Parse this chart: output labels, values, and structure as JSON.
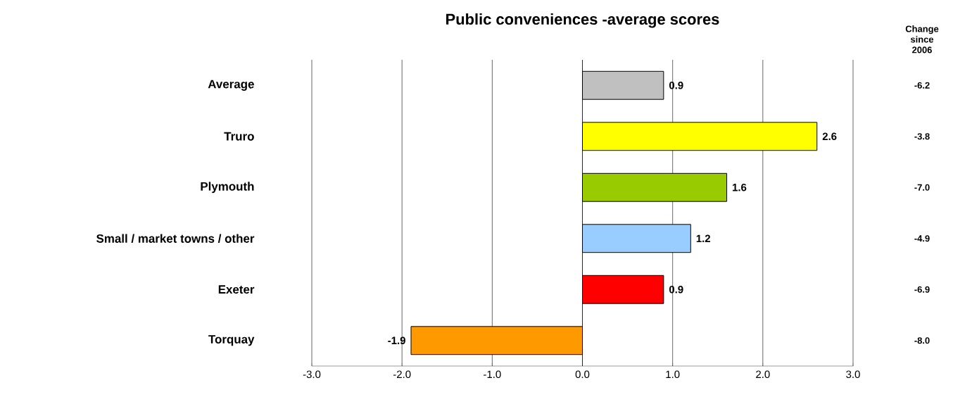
{
  "chart_data": {
    "type": "bar",
    "orientation": "horizontal",
    "title": "Public conveniences -average scores",
    "categories": [
      "Average",
      "Truro",
      "Plymouth",
      "Small / market towns / other",
      "Exeter",
      "Torquay"
    ],
    "values": [
      0.9,
      2.6,
      1.6,
      1.2,
      0.9,
      -1.9
    ],
    "value_labels": [
      "0.9",
      "2.6",
      "1.6",
      "1.2",
      "0.9",
      "-1.9"
    ],
    "colors": [
      "#c0c0c0",
      "#ffff00",
      "#99cc00",
      "#99ccff",
      "#ff0000",
      "#ff9900"
    ],
    "xlim": [
      -3,
      3
    ],
    "xticks": [
      {
        "value": -3,
        "label": "-3.0"
      },
      {
        "value": -2,
        "label": "-2.0"
      },
      {
        "value": -1,
        "label": "-1.0"
      },
      {
        "value": 0,
        "label": "0.0"
      },
      {
        "value": 1,
        "label": "1.0"
      },
      {
        "value": 2,
        "label": "2.0"
      },
      {
        "value": 3,
        "label": "3.0"
      }
    ],
    "grid": "x",
    "annotations": [
      "Change since 2006",
      "-6.2",
      "-3.8",
      "-7.0",
      "-4.9",
      "-6.9",
      "-8.0"
    ]
  }
}
